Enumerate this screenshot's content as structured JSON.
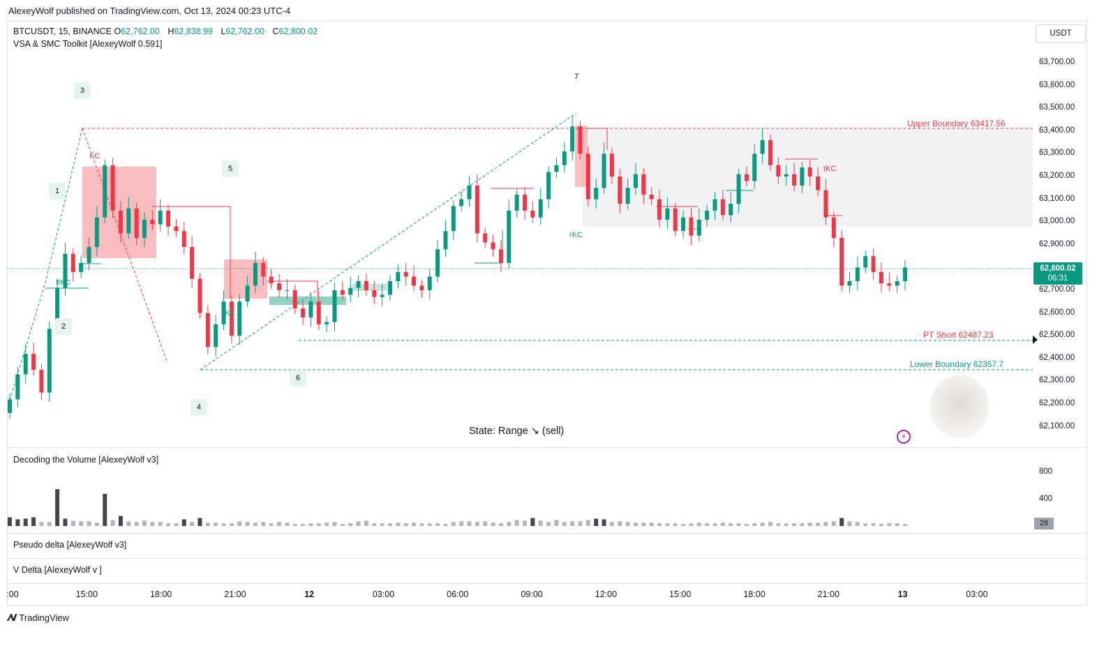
{
  "publish_line": "AlexeyWolf published on TradingView.com, Oct 13, 2024 00:23 UTC-4",
  "symbol_line": {
    "symbol": "BTCUSDT, 15, BINANCE",
    "o_key": "O",
    "o_val": "62,762.00",
    "h_key": "H",
    "h_val": "62,838.99",
    "l_key": "L",
    "l_val": "62,762.00",
    "c_key": "C",
    "c_val": "62,800.02"
  },
  "indicator_main": "VSA & SMC Toolkit [AlexeyWolf 0.591]",
  "currency_button": "USDT",
  "price_tag": {
    "price": "62,800.02",
    "countdown": "06:31"
  },
  "volume_tag": "28",
  "panes": {
    "volume": "Decoding the Volume [AlexeyWolf v3]",
    "pseudo_delta": "Pseudo delta [AlexeyWolf v3]",
    "v_delta": "V Delta [AlexeyWolf v ]"
  },
  "state_text": "State:   Range ↘ (sell)",
  "brand": "TradingView",
  "colors": {
    "up": "#089981",
    "down": "#f23645",
    "grid": "#e0e3eb",
    "range_box": "#f0f1f3",
    "volume_dark": "#434651",
    "volume_light": "#b2b5be"
  },
  "chart_data": {
    "type": "candlestick",
    "title": "BTCUSDT, 15, BINANCE",
    "y_ticks": [
      "63,700.00",
      "63,600.00",
      "63,500.00",
      "63,400.00",
      "63,300.00",
      "63,200.00",
      "63,100.00",
      "63,000.00",
      "62,900.00",
      "62,800.00",
      "62,700.00",
      "62,600.00",
      "62,500.00",
      "62,400.00",
      "62,300.00",
      "62,200.00",
      "62,100.00"
    ],
    "y_tick_values": [
      63700,
      63600,
      63500,
      63400,
      63300,
      63200,
      63100,
      63000,
      62900,
      62800,
      62700,
      62600,
      62500,
      62400,
      62300,
      62200,
      62100
    ],
    "volume_ticks": [
      "800",
      "400"
    ],
    "volume_tick_values": [
      800,
      400
    ],
    "x_ticks": [
      ":00",
      "15:00",
      "18:00",
      "21:00",
      "12",
      "03:00",
      "06:00",
      "09:00",
      "12:00",
      "15:00",
      "18:00",
      "21:00",
      "13",
      "03:00"
    ],
    "x_tick_bold": [
      false,
      false,
      false,
      false,
      true,
      false,
      false,
      false,
      false,
      false,
      false,
      false,
      true,
      false
    ],
    "levels": [
      {
        "label": "Upper Boundary 63417.56",
        "value": 63417.56,
        "color": "#f23645"
      },
      {
        "label": "PT Short 62487.23",
        "value": 62487.23,
        "color": "#f23645"
      },
      {
        "label": "Lower Boundary 62357.7",
        "value": 62357.7,
        "color": "#089981"
      }
    ],
    "wave_labels": [
      "1",
      "2",
      "3",
      "4",
      "5",
      "6",
      "7"
    ],
    "annotations": [
      "KC",
      "KC",
      "rKC",
      "tKC",
      "RKC"
    ],
    "closes": [
      62220,
      62330,
      62420,
      62350,
      62250,
      62530,
      62710,
      62860,
      62780,
      62820,
      62890,
      63020,
      63250,
      63050,
      62950,
      63060,
      62930,
      63010,
      62990,
      63050,
      62980,
      62960,
      62890,
      62750,
      62600,
      62450,
      62550,
      62650,
      62500,
      62650,
      62720,
      62820,
      62760,
      62730,
      62700,
      62700,
      62620,
      62580,
      62650,
      62550,
      62560,
      62700,
      62680,
      62710,
      62740,
      62700,
      62670,
      62680,
      62740,
      62780,
      62760,
      62720,
      62700,
      62760,
      62880,
      62960,
      63070,
      63100,
      63160,
      62950,
      62910,
      62880,
      62820,
      63050,
      63120,
      63050,
      63020,
      63100,
      63220,
      63250,
      63310,
      63420,
      63300,
      63100,
      63150,
      63300,
      63200,
      63080,
      63150,
      63210,
      63120,
      63100,
      63010,
      63060,
      62960,
      63020,
      62940,
      63010,
      63050,
      63100,
      63030,
      63080,
      63210,
      63180,
      63300,
      63360,
      63250,
      63200,
      63210,
      63160,
      63240,
      63200,
      63140,
      63020,
      62930,
      62720,
      62740,
      62800,
      62850,
      62780,
      62730,
      62720,
      62740,
      62800
    ],
    "volumes": [
      130,
      100,
      110,
      130,
      60,
      60,
      550,
      110,
      80,
      70,
      70,
      50,
      480,
      90,
      150,
      70,
      60,
      80,
      60,
      60,
      40,
      40,
      100,
      60,
      120,
      50,
      50,
      40,
      40,
      70,
      60,
      50,
      60,
      40,
      60,
      50,
      30,
      30,
      40,
      40,
      50,
      60,
      30,
      40,
      70,
      80,
      40,
      40,
      40,
      50,
      40,
      50,
      40,
      40,
      40,
      30,
      60,
      70,
      70,
      60,
      70,
      50,
      40,
      60,
      90,
      80,
      120,
      80,
      60,
      90,
      60,
      70,
      70,
      90,
      110,
      100,
      60,
      70,
      60,
      50,
      50,
      50,
      40,
      40,
      40,
      30,
      40,
      50,
      40,
      40,
      50,
      40,
      40,
      30,
      40,
      50,
      60,
      40,
      40,
      40,
      40,
      50,
      50,
      60,
      70,
      120,
      70,
      60,
      40,
      40,
      30,
      40,
      40,
      30
    ]
  }
}
